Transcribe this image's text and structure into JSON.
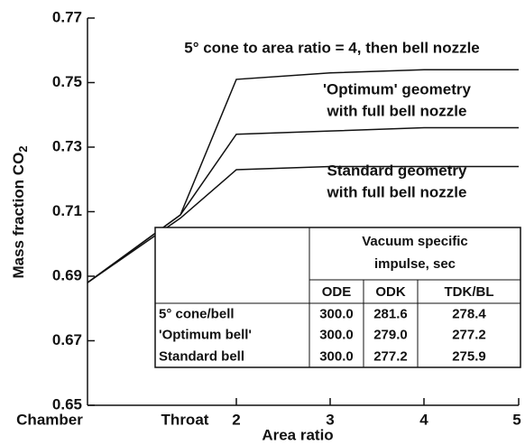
{
  "chart_data": {
    "type": "line",
    "ylabel": "Mass fraction CO",
    "ylabel_subscript": "2",
    "xlabel": "Area ratio",
    "categories": [
      "Chamber",
      "Throat",
      "2",
      "3",
      "4",
      "5"
    ],
    "series": [
      {
        "name": "5° cone to area ratio = 4, then bell nozzle",
        "color": "#111111",
        "values": [
          0.688,
          0.709,
          0.751,
          0.753,
          0.754,
          0.754
        ]
      },
      {
        "name": "'Optimum' geometry with full bell nozzle",
        "color": "#111111",
        "values": [
          0.688,
          0.709,
          0.734,
          0.735,
          0.736,
          0.736
        ]
      },
      {
        "name": "Standard geometry with full bell nozzle",
        "color": "#111111",
        "values": [
          0.688,
          0.708,
          0.723,
          0.724,
          0.724,
          0.724
        ]
      }
    ],
    "annotations": [
      "5° cone to area ratio = 4, then bell nozzle",
      "'Optimum' geometry",
      "with full bell nozzle",
      "Standard geometry",
      "with full bell nozzle"
    ],
    "ylim": [
      0.65,
      0.77
    ],
    "yticks": [
      0.65,
      0.67,
      0.69,
      0.71,
      0.73,
      0.75,
      0.77
    ],
    "grid": false,
    "table": {
      "header": [
        "Vacuum specific",
        "impulse, sec"
      ],
      "columns": [
        "ODE",
        "ODK",
        "TDK/BL"
      ],
      "rows": [
        [
          "5° cone/bell",
          "300.0",
          "281.6",
          "278.4"
        ],
        [
          "'Optimum bell'",
          "300.0",
          "279.0",
          "277.2"
        ],
        [
          "Standard bell",
          "300.0",
          "277.2",
          "275.9"
        ]
      ]
    }
  }
}
